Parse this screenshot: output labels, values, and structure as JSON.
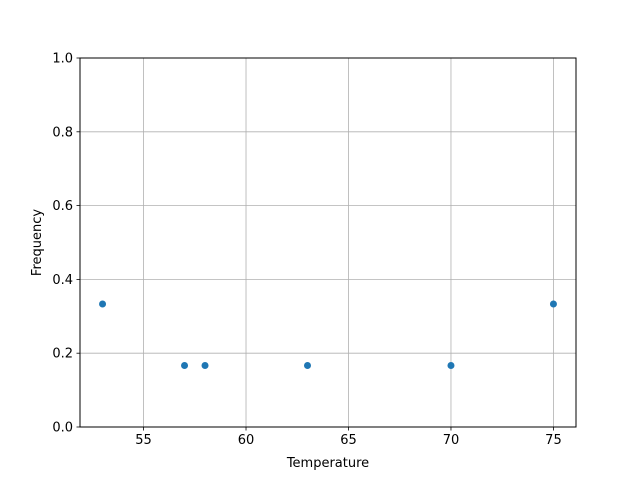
{
  "chart_data": {
    "type": "scatter",
    "title": "",
    "xlabel": "Temperature",
    "ylabel": "Frequency",
    "xlim": [
      51.9,
      76.1
    ],
    "ylim": [
      0,
      1
    ],
    "xticks": [
      55,
      60,
      65,
      70,
      75
    ],
    "xtick_labels": [
      "55",
      "60",
      "65",
      "70",
      "75"
    ],
    "yticks": [
      0,
      0.2,
      0.4,
      0.6,
      0.8,
      1.0
    ],
    "ytick_labels": [
      "0.0",
      "0.2",
      "0.4",
      "0.6",
      "0.8",
      "1.0"
    ],
    "grid": true,
    "points": [
      {
        "x": 53,
        "y": 0.3333
      },
      {
        "x": 57,
        "y": 0.1667
      },
      {
        "x": 58,
        "y": 0.1667
      },
      {
        "x": 63,
        "y": 0.1667
      },
      {
        "x": 70,
        "y": 0.1667
      },
      {
        "x": 75,
        "y": 0.3333
      }
    ],
    "colors": {
      "marker": "#1f77b4",
      "grid": "#b0b0b0"
    }
  }
}
